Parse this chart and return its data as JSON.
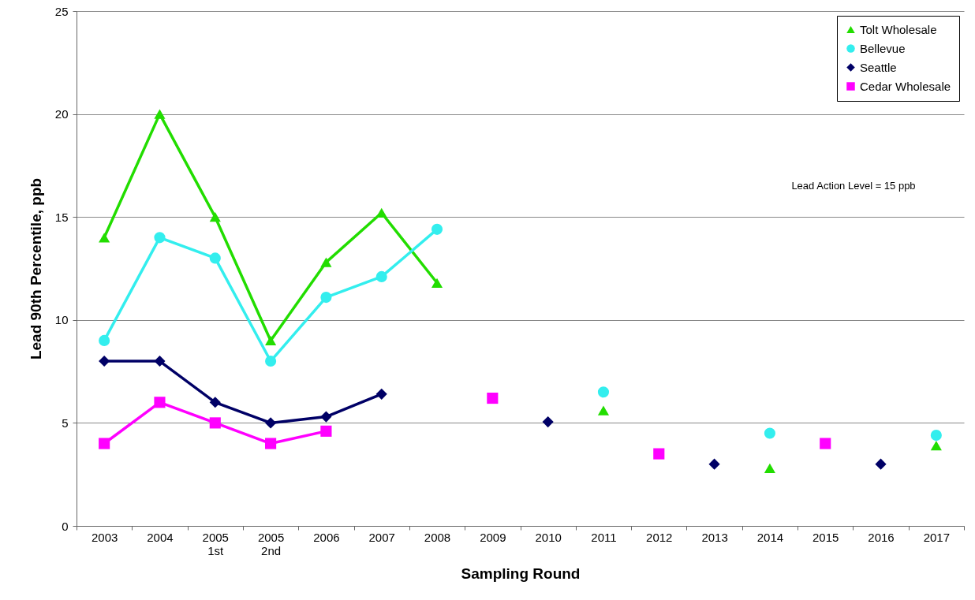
{
  "chart_data": {
    "type": "line",
    "xlabel": "Sampling Round",
    "ylabel": "Lead 90th Percentile, ppb",
    "categories": [
      "2003",
      "2004",
      "2005\n1st",
      "2005\n2nd",
      "2006",
      "2007",
      "2008",
      "2009",
      "2010",
      "2011",
      "2012",
      "2013",
      "2014",
      "2015",
      "2016",
      "2017"
    ],
    "series": [
      {
        "name": "Tolt Wholesale",
        "color": "#22dd00",
        "marker": "triangle",
        "values": [
          14,
          20,
          15,
          9,
          12.8,
          15.2,
          11.8,
          null,
          null,
          5.6,
          null,
          null,
          2.8,
          null,
          null,
          3.9
        ]
      },
      {
        "name": "Bellevue",
        "color": "#33eeee",
        "marker": "circle",
        "values": [
          9,
          14,
          13,
          8,
          11.1,
          12.1,
          14.4,
          null,
          null,
          6.5,
          null,
          null,
          4.5,
          null,
          null,
          4.4
        ]
      },
      {
        "name": "Seattle",
        "color": "#000066",
        "marker": "diamond",
        "values": [
          8,
          8,
          6,
          5,
          5.3,
          6.4,
          null,
          null,
          5.05,
          null,
          null,
          3,
          null,
          null,
          3,
          null
        ]
      },
      {
        "name": "Cedar Wholesale",
        "color": "#ff00ff",
        "marker": "square",
        "values": [
          4,
          6,
          5,
          4,
          4.6,
          null,
          null,
          6.2,
          null,
          null,
          3.5,
          null,
          null,
          4,
          null,
          null
        ]
      }
    ],
    "ylim": [
      0,
      25
    ],
    "yticks": [
      0,
      5,
      10,
      15,
      20,
      25
    ],
    "grid": "y",
    "legend": "top right",
    "annotations": [
      "Lead Action Level = 15 ppb"
    ]
  }
}
